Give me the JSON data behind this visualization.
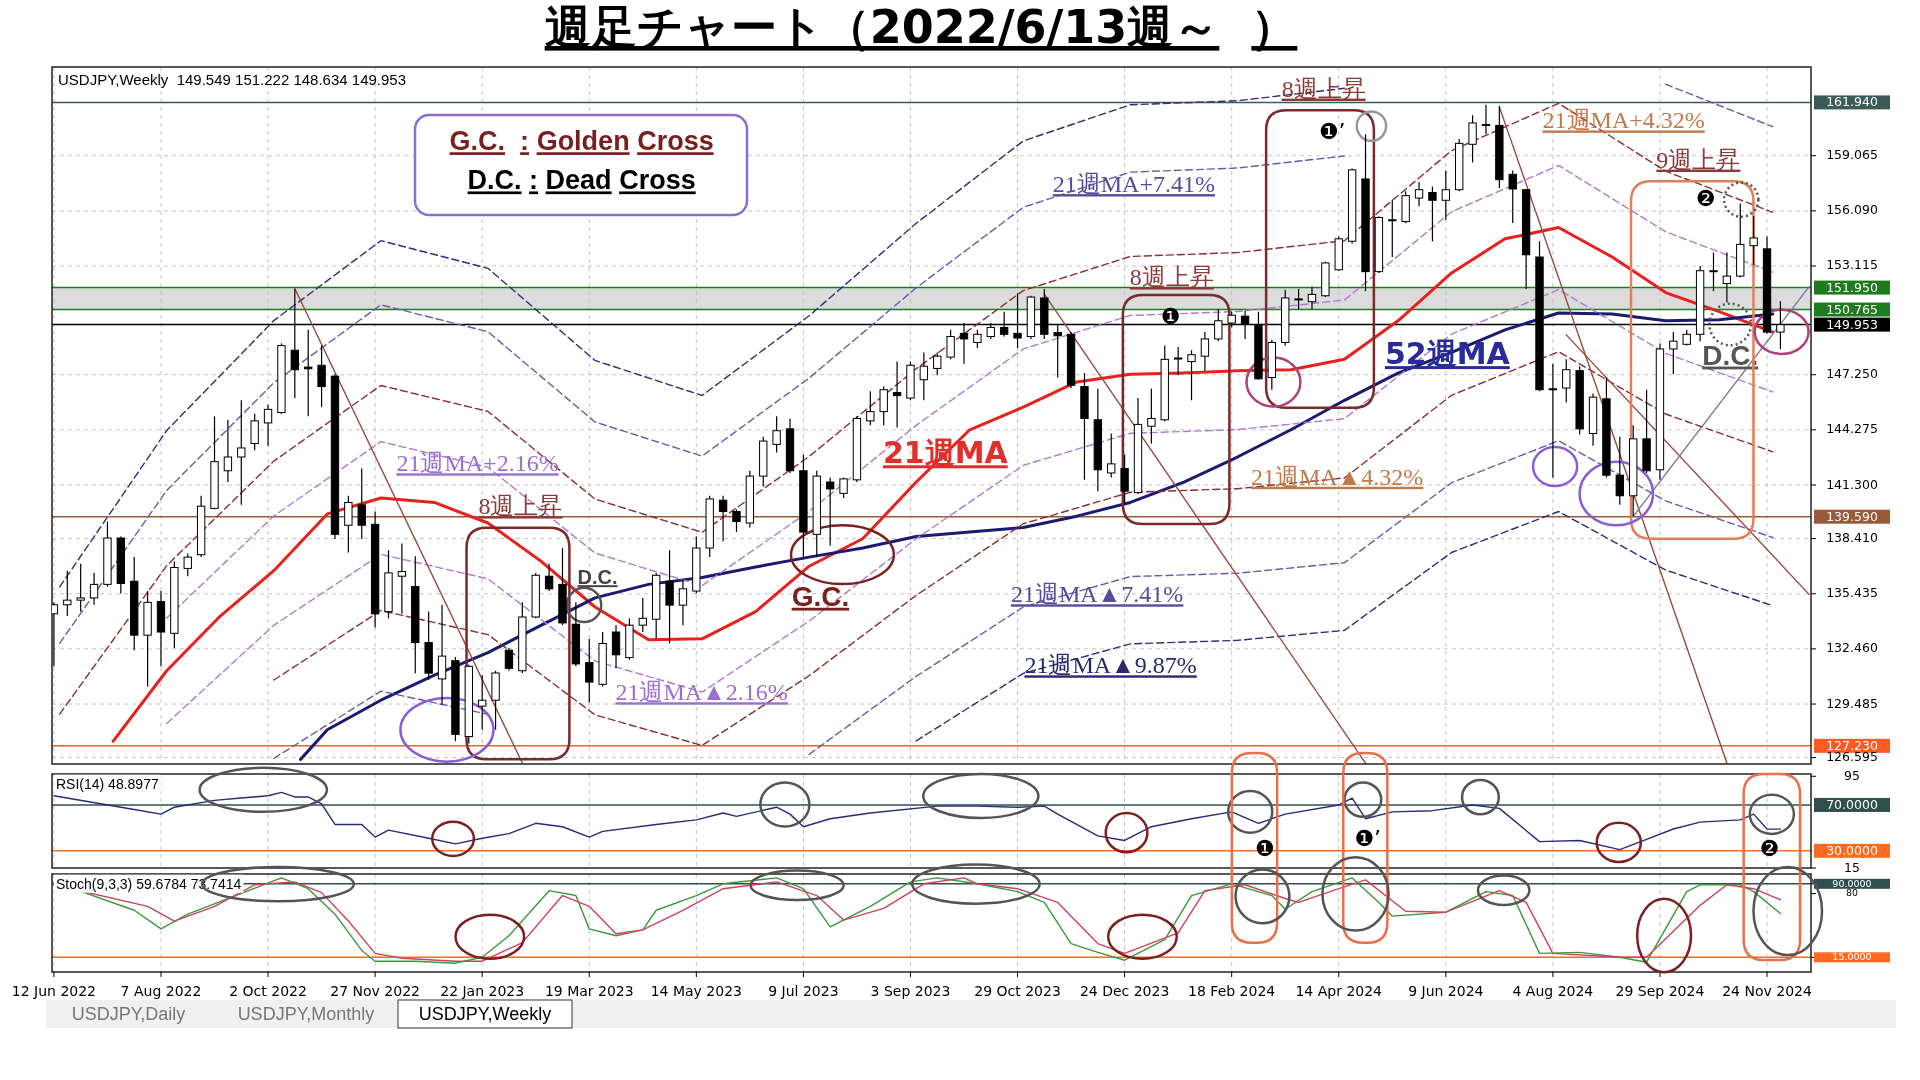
{
  "chart_data": [
    {
      "type": "candlestick",
      "title": "週足チャート（2022/6/13週～  ）",
      "subtitle": "USDJPY,Weekly  149.549 151.222 148.634 149.953",
      "x": [
        "2022-06-12",
        "2022-06-19",
        "2022-06-26",
        "2022-07-03",
        "2022-07-10",
        "2022-07-17",
        "2022-07-24",
        "2022-07-31",
        "2022-08-07",
        "2022-08-14",
        "2022-08-21",
        "2022-08-28",
        "2022-09-04",
        "2022-09-11",
        "2022-09-18",
        "2022-09-25",
        "2022-10-02",
        "2022-10-09",
        "2022-10-16",
        "2022-10-23",
        "2022-10-30",
        "2022-11-06",
        "2022-11-13",
        "2022-11-20",
        "2022-11-27",
        "2022-12-04",
        "2022-12-11",
        "2022-12-18",
        "2022-12-25",
        "2023-01-01",
        "2023-01-08",
        "2023-01-15",
        "2023-01-22",
        "2023-01-29",
        "2023-02-05",
        "2023-02-12",
        "2023-02-19",
        "2023-02-26",
        "2023-03-05",
        "2023-03-12",
        "2023-03-19",
        "2023-03-26",
        "2023-04-02",
        "2023-04-09",
        "2023-04-16",
        "2023-04-23",
        "2023-04-30",
        "2023-05-07",
        "2023-05-14",
        "2023-05-21",
        "2023-05-28",
        "2023-06-04",
        "2023-06-11",
        "2023-06-18",
        "2023-06-25",
        "2023-07-02",
        "2023-07-09",
        "2023-07-16",
        "2023-07-23",
        "2023-07-30",
        "2023-08-06",
        "2023-08-13",
        "2023-08-20",
        "2023-08-27",
        "2023-09-03",
        "2023-09-10",
        "2023-09-17",
        "2023-09-24",
        "2023-10-01",
        "2023-10-08",
        "2023-10-15",
        "2023-10-22",
        "2023-10-29",
        "2023-11-05",
        "2023-11-12",
        "2023-11-19",
        "2023-11-26",
        "2023-12-03",
        "2023-12-10",
        "2023-12-17",
        "2023-12-24",
        "2023-12-31",
        "2024-01-07",
        "2024-01-14",
        "2024-01-21",
        "2024-01-28",
        "2024-02-04",
        "2024-02-11",
        "2024-02-18",
        "2024-02-25",
        "2024-03-03",
        "2024-03-10",
        "2024-03-17",
        "2024-03-24",
        "2024-03-31",
        "2024-04-07",
        "2024-04-14",
        "2024-04-21",
        "2024-04-28",
        "2024-05-05",
        "2024-05-12",
        "2024-05-19",
        "2024-05-26",
        "2024-06-02",
        "2024-06-09",
        "2024-06-16",
        "2024-06-23",
        "2024-06-30",
        "2024-07-07",
        "2024-07-14",
        "2024-07-21",
        "2024-07-28",
        "2024-08-04",
        "2024-08-11",
        "2024-08-18",
        "2024-08-25",
        "2024-09-01",
        "2024-09-08",
        "2024-09-15",
        "2024-09-22",
        "2024-09-29",
        "2024-10-06",
        "2024-10-13",
        "2024-10-20",
        "2024-10-27",
        "2024-11-03",
        "2024-11-10",
        "2024-11-17",
        "2024-11-24",
        "2024-12-01"
      ],
      "ohlc": [
        [
          134.35,
          134.97,
          131.52,
          134.84
        ],
        [
          134.84,
          136.68,
          134.23,
          135.09
        ],
        [
          135.09,
          137.05,
          134.47,
          135.21
        ],
        [
          135.21,
          136.56,
          134.84,
          135.94
        ],
        [
          135.94,
          139.33,
          135.82,
          138.44
        ],
        [
          138.44,
          138.52,
          135.45,
          135.99
        ],
        [
          136.11,
          137.41,
          132.39,
          133.2
        ],
        [
          133.2,
          135.58,
          130.43,
          134.97
        ],
        [
          135.01,
          135.58,
          131.52,
          133.37
        ],
        [
          133.3,
          137.17,
          132.51,
          136.85
        ],
        [
          136.8,
          137.61,
          136.38,
          137.41
        ],
        [
          137.54,
          140.72,
          137.41,
          140.16
        ],
        [
          140.04,
          145.01,
          139.99,
          142.56
        ],
        [
          142.07,
          144.82,
          141.46,
          142.81
        ],
        [
          142.81,
          145.87,
          140.23,
          143.3
        ],
        [
          143.54,
          145.14,
          143.17,
          144.76
        ],
        [
          144.65,
          145.63,
          143.42,
          145.38
        ],
        [
          145.21,
          148.94,
          145.14,
          148.82
        ],
        [
          148.57,
          151.88,
          145.99,
          147.52
        ],
        [
          147.66,
          149.67,
          145.01,
          147.57
        ],
        [
          147.76,
          148.82,
          145.5,
          146.61
        ],
        [
          147.17,
          147.27,
          138.39,
          138.64
        ],
        [
          139.13,
          140.72,
          137.66,
          140.36
        ],
        [
          140.23,
          142.19,
          138.39,
          139.13
        ],
        [
          139.18,
          139.87,
          133.61,
          134.35
        ],
        [
          134.47,
          137.78,
          134.11,
          136.56
        ],
        [
          136.38,
          138.15,
          134.35,
          136.63
        ],
        [
          135.82,
          137.46,
          131.15,
          132.8
        ],
        [
          132.8,
          134.47,
          130.79,
          131.15
        ],
        [
          130.84,
          134.84,
          129.44,
          132.07
        ],
        [
          131.82,
          132.02,
          127.48,
          127.85
        ],
        [
          127.73,
          131.6,
          127.36,
          131.52
        ],
        [
          129.37,
          131.04,
          128.1,
          129.69
        ],
        [
          129.69,
          131.28,
          128.1,
          131.16
        ],
        [
          132.39,
          132.51,
          131.28,
          131.41
        ],
        [
          131.28,
          134.97,
          131.16,
          134.18
        ],
        [
          134.18,
          136.56,
          134.11,
          136.43
        ],
        [
          136.38,
          137.05,
          135.58,
          135.7
        ],
        [
          135.94,
          137.9,
          133.74,
          133.86
        ],
        [
          133.79,
          134.97,
          131.52,
          131.65
        ],
        [
          131.72,
          132.99,
          129.57,
          130.67
        ],
        [
          130.55,
          133.37,
          130.43,
          132.75
        ],
        [
          133.37,
          133.74,
          131.41,
          132.14
        ],
        [
          131.99,
          134.11,
          131.87,
          133.74
        ],
        [
          133.74,
          135.21,
          133.37,
          134.11
        ],
        [
          134.06,
          136.56,
          132.99,
          136.43
        ],
        [
          136.11,
          137.78,
          132.75,
          134.82
        ],
        [
          134.82,
          136.23,
          133.74,
          135.7
        ],
        [
          135.58,
          138.52,
          135.45,
          137.9
        ],
        [
          137.9,
          140.72,
          137.41,
          140.55
        ],
        [
          140.48,
          140.72,
          138.27,
          139.87
        ],
        [
          139.87,
          139.99,
          138.76,
          139.33
        ],
        [
          139.25,
          142.07,
          139.01,
          141.78
        ],
        [
          141.78,
          143.91,
          141.21,
          143.67
        ],
        [
          143.49,
          145.01,
          143.05,
          144.23
        ],
        [
          144.33,
          144.88,
          141.95,
          142.07
        ],
        [
          142.07,
          142.93,
          137.29,
          138.76
        ],
        [
          138.64,
          142.07,
          137.41,
          141.78
        ],
        [
          141.46,
          141.7,
          138.03,
          141.09
        ],
        [
          140.85,
          141.7,
          140.6,
          141.63
        ],
        [
          141.58,
          145.01,
          141.46,
          144.89
        ],
        [
          144.76,
          146.36,
          144.52,
          145.26
        ],
        [
          145.26,
          146.61,
          144.52,
          146.44
        ],
        [
          146.29,
          147.96,
          144.4,
          146.12
        ],
        [
          145.99,
          147.96,
          145.87,
          147.76
        ],
        [
          146.98,
          148.45,
          145.87,
          147.71
        ],
        [
          147.59,
          148.45,
          147.22,
          148.25
        ],
        [
          148.2,
          149.67,
          148.08,
          149.31
        ],
        [
          149.48,
          150.04,
          147.84,
          149.18
        ],
        [
          148.99,
          149.67,
          148.69,
          149.43
        ],
        [
          149.31,
          150.04,
          149.18,
          149.8
        ],
        [
          149.8,
          150.65,
          149.31,
          149.43
        ],
        [
          149.48,
          151.63,
          148.69,
          149.23
        ],
        [
          149.31,
          151.51,
          149.18,
          151.44
        ],
        [
          151.39,
          151.88,
          149.18,
          149.43
        ],
        [
          149.53,
          149.92,
          147.1,
          149.35
        ],
        [
          149.43,
          149.55,
          146.53,
          146.68
        ],
        [
          146.61,
          147.34,
          141.58,
          144.89
        ],
        [
          144.82,
          146.49,
          140.97,
          142.12
        ],
        [
          141.95,
          144.08,
          141.7,
          142.44
        ],
        [
          142.19,
          142.93,
          140.23,
          140.97
        ],
        [
          140.89,
          145.99,
          140.8,
          144.57
        ],
        [
          144.47,
          146.49,
          143.54,
          144.89
        ],
        [
          144.82,
          148.82,
          144.72,
          148.08
        ],
        [
          148.1,
          148.74,
          147.22,
          148.15
        ],
        [
          147.96,
          148.57,
          145.87,
          148.33
        ],
        [
          148.25,
          149.55,
          147.47,
          149.18
        ],
        [
          149.18,
          150.78,
          149.06,
          150.16
        ],
        [
          150.04,
          150.65,
          149.8,
          150.46
        ],
        [
          150.41,
          150.7,
          149.18,
          149.97
        ],
        [
          149.92,
          150.65,
          146.98,
          147.03
        ],
        [
          147.1,
          149.14,
          146.44,
          148.99
        ],
        [
          148.99,
          151.83,
          148.82,
          151.39
        ],
        [
          151.29,
          151.88,
          150.78,
          151.34
        ],
        [
          151.19,
          152.0,
          150.78,
          151.58
        ],
        [
          151.51,
          153.35,
          151.44,
          153.28
        ],
        [
          152.91,
          154.7,
          152.86,
          154.58
        ],
        [
          154.45,
          158.38,
          154.33,
          158.3
        ],
        [
          157.81,
          160.22,
          151.76,
          152.81
        ],
        [
          152.81,
          155.8,
          152.74,
          155.73
        ],
        [
          155.56,
          156.66,
          153.6,
          155.61
        ],
        [
          155.51,
          157.15,
          155.44,
          156.91
        ],
        [
          156.78,
          157.64,
          156.34,
          157.23
        ],
        [
          157.08,
          157.4,
          154.45,
          156.66
        ],
        [
          156.66,
          158.26,
          155.61,
          157.23
        ],
        [
          157.23,
          159.97,
          157.15,
          159.73
        ],
        [
          159.68,
          161.25,
          158.7,
          160.83
        ],
        [
          160.7,
          161.81,
          160.22,
          160.75
        ],
        [
          160.7,
          161.74,
          157.32,
          157.77
        ],
        [
          158.06,
          158.26,
          155.44,
          157.27
        ],
        [
          157.23,
          157.27,
          151.88,
          153.72
        ],
        [
          153.6,
          154.45,
          146.36,
          146.44
        ],
        [
          146.49,
          147.84,
          141.7,
          146.44
        ],
        [
          146.53,
          148.08,
          145.75,
          147.52
        ],
        [
          147.47,
          147.71,
          144.03,
          144.33
        ],
        [
          144.08,
          146.24,
          143.42,
          146.04
        ],
        [
          145.95,
          147.1,
          141.7,
          141.83
        ],
        [
          141.83,
          143.91,
          140.23,
          140.72
        ],
        [
          140.72,
          144.52,
          139.62,
          143.79
        ],
        [
          143.79,
          146.44,
          141.95,
          142.07
        ],
        [
          142.12,
          148.94,
          141.58,
          148.64
        ],
        [
          148.64,
          149.55,
          147.27,
          149.06
        ],
        [
          148.89,
          149.67,
          148.82,
          149.43
        ],
        [
          149.43,
          153.11,
          149.06,
          152.86
        ],
        [
          152.81,
          153.84,
          151.76,
          152.86
        ],
        [
          152.17,
          153.84,
          151.14,
          152.57
        ],
        [
          152.57,
          156.49,
          152.49,
          154.28
        ],
        [
          154.21,
          155.8,
          153.16,
          154.63
        ],
        [
          154.04,
          154.7,
          149.48,
          149.55
        ],
        [
          149.55,
          151.22,
          148.63,
          149.95
        ]
      ],
      "xlim": [
        "2022-06-11",
        "2024-12-17"
      ],
      "xticks": [
        "2022-06-12",
        "2022-08-07",
        "2022-10-02",
        "2022-11-27",
        "2023-01-22",
        "2023-03-19",
        "2023-05-14",
        "2023-07-09",
        "2023-09-03",
        "2023-10-29",
        "2023-12-24",
        "2024-02-18",
        "2024-04-14",
        "2024-06-09",
        "2024-08-04",
        "2024-09-29",
        "2024-11-24"
      ],
      "tick_labels": "y",
      "ylim": [
        126.25,
        163.85
      ],
      "yticks": [
        159.065,
        {
          "value": 156.09,
          "label": "156.090"
        },
        153.115,
        {
          "value": 147.25,
          "label": "147.250"
        },
        144.275,
        {
          "value": 141.3,
          "label": "141.300"
        },
        {
          "value": 138.41,
          "label": "138.410"
        },
        135.435,
        {
          "value": 132.46,
          "label": "132.460"
        },
        129.485,
        126.595
      ],
      "grid": true,
      "bands": [
        {
          "axis": "y",
          "from": 150.765,
          "to": 151.95,
          "color": "#dcdcdc"
        }
      ],
      "ref_lines": [
        {
          "axis": "y",
          "value": 161.94,
          "label": "161.940",
          "color": "#3b5a58"
        },
        {
          "axis": "y",
          "value": 151.95,
          "label": "151.950",
          "color": "#1e7b1e"
        },
        {
          "axis": "y",
          "value": 150.765,
          "label": "150.765",
          "color": "#1e7b1e"
        },
        {
          "axis": "y",
          "value": 149.953,
          "label": "149.953",
          "color": "#000000"
        },
        {
          "axis": "y",
          "value": 139.59,
          "label": "139.590",
          "color": "#9a5a3a"
        },
        {
          "axis": "y",
          "value": 127.23,
          "label": "127.230",
          "color": "#ff5a1f"
        }
      ],
      "series": [
        {
          "type": "line",
          "color": "#e8211c",
          "line_style": "solid",
          "x": [
            "2022-07-13",
            "2022-08-10",
            "2022-09-07",
            "2022-10-05",
            "2022-11-02",
            "2022-11-30",
            "2022-12-28",
            "2023-01-25",
            "2023-02-22",
            "2023-03-22",
            "2023-04-19",
            "2023-05-17",
            "2023-06-14",
            "2023-07-12",
            "2023-08-09",
            "2023-09-06",
            "2023-10-04",
            "2023-11-01",
            "2023-11-29",
            "2023-12-27",
            "2024-01-24",
            "2024-02-21",
            "2024-03-20",
            "2024-04-17",
            "2024-05-15",
            "2024-06-12",
            "2024-07-10",
            "2024-08-07",
            "2024-09-04",
            "2024-10-02",
            "2024-10-30",
            "2024-11-27"
          ],
          "values": [
            127.48,
            131.28,
            134.23,
            136.68,
            139.74,
            140.6,
            140.36,
            139.25,
            137.17,
            134.72,
            132.95,
            133.0,
            134.47,
            136.92,
            138.4,
            141.46,
            144.28,
            145.5,
            146.86,
            147.27,
            147.34,
            147.47,
            147.52,
            148.08,
            150.16,
            152.74,
            154.58,
            155.19,
            153.6,
            151.68,
            150.65,
            149.55
          ]
        },
        {
          "type": "line",
          "color": "#1a1a6e",
          "line_style": "solid",
          "x": [
            "2022-10-19",
            "2022-11-02",
            "2022-11-30",
            "2022-12-28",
            "2023-01-25",
            "2023-02-22",
            "2023-03-22",
            "2023-04-19",
            "2023-05-17",
            "2023-06-14",
            "2023-07-12",
            "2023-08-09",
            "2023-09-06",
            "2023-10-04",
            "2023-11-01",
            "2023-11-29",
            "2023-12-27",
            "2024-01-24",
            "2024-02-21",
            "2024-03-20",
            "2024-04-17",
            "2024-05-15",
            "2024-06-12",
            "2024-07-10",
            "2024-08-07",
            "2024-09-04",
            "2024-10-02",
            "2024-10-30",
            "2024-11-27"
          ],
          "values": [
            126.5,
            128.1,
            129.69,
            131.04,
            132.26,
            133.74,
            135.21,
            135.94,
            136.31,
            136.88,
            137.41,
            137.9,
            138.52,
            138.76,
            139.01,
            139.62,
            140.36,
            141.46,
            142.81,
            144.28,
            145.87,
            147.34,
            148.45,
            149.67,
            150.58,
            150.53,
            150.16,
            150.21,
            150.53
          ]
        },
        {
          "type": "line",
          "color": "#b07ad0",
          "line_style": "dashed",
          "x": [
            "2022-08-10",
            "2022-10-05",
            "2022-11-30",
            "2023-01-25",
            "2023-03-22",
            "2023-05-17",
            "2023-07-12",
            "2023-09-06",
            "2023-11-01",
            "2023-12-27",
            "2024-02-21",
            "2024-04-17",
            "2024-06-12",
            "2024-08-07",
            "2024-10-02",
            "2024-11-27"
          ],
          "values": [
            134.12,
            139.63,
            143.64,
            142.26,
            137.63,
            135.87,
            139.88,
            144.52,
            148.64,
            150.45,
            150.66,
            151.28,
            156.04,
            158.54,
            154.96,
            152.78
          ]
        },
        {
          "type": "line",
          "color": "#b07ad0",
          "line_style": "dashed",
          "x": [
            "2022-08-10",
            "2022-10-05",
            "2022-11-30",
            "2023-01-25",
            "2023-03-22",
            "2023-05-17",
            "2023-07-12",
            "2023-09-06",
            "2023-11-01",
            "2023-12-27",
            "2024-02-21",
            "2024-04-17",
            "2024-06-12",
            "2024-08-07",
            "2024-10-02",
            "2024-11-27"
          ],
          "values": [
            128.44,
            133.73,
            137.56,
            136.24,
            131.81,
            130.13,
            133.96,
            138.4,
            142.36,
            144.09,
            144.29,
            144.88,
            149.44,
            151.84,
            148.4,
            146.32
          ]
        },
        {
          "type": "line",
          "color": "#8b2e2e",
          "line_style": "dashed",
          "x": [
            "2022-06-15",
            "2022-08-10",
            "2022-10-05",
            "2022-11-30",
            "2023-01-25",
            "2023-03-22",
            "2023-05-17",
            "2023-07-12",
            "2023-09-06",
            "2023-11-01",
            "2023-12-27",
            "2024-02-21",
            "2024-04-17",
            "2024-06-12",
            "2024-08-07",
            "2024-10-02",
            "2024-11-27"
          ],
          "values": [
            128.94,
            136.95,
            142.59,
            146.67,
            145.27,
            140.54,
            138.75,
            142.84,
            147.57,
            151.79,
            153.63,
            153.84,
            154.48,
            159.34,
            161.89,
            158.23,
            156.01
          ]
        },
        {
          "type": "line",
          "color": "#8b2e2e",
          "line_style": "dashed",
          "x": [
            "2022-10-05",
            "2022-11-30",
            "2023-01-25",
            "2023-03-22",
            "2023-05-17",
            "2023-07-12",
            "2023-09-06",
            "2023-11-01",
            "2023-12-27",
            "2024-02-21",
            "2024-04-17",
            "2024-06-12",
            "2024-08-07",
            "2024-10-02",
            "2024-11-27"
          ],
          "values": [
            130.78,
            134.53,
            133.23,
            128.9,
            127.25,
            131.01,
            135.35,
            139.21,
            140.91,
            141.1,
            141.68,
            146.14,
            148.49,
            145.13,
            143.09
          ]
        },
        {
          "type": "line",
          "color": "#6a5aa8",
          "line_style": "dashed",
          "x": [
            "2022-06-15",
            "2022-08-10",
            "2022-10-05",
            "2022-11-30",
            "2023-01-25",
            "2023-03-22",
            "2023-05-17",
            "2023-07-12",
            "2023-09-06",
            "2023-11-01",
            "2023-12-27",
            "2024-02-21",
            "2024-04-17"
          ],
          "values": [
            132.76,
            141.01,
            146.81,
            151.02,
            149.57,
            144.7,
            142.86,
            147.07,
            151.94,
            156.28,
            158.18,
            158.4,
            159.05
          ]
        },
        {
          "type": "line",
          "color": "#6a5aa8",
          "line_style": "dashed",
          "x": [
            "2024-10-02",
            "2024-11-27"
          ],
          "values": [
            162.92,
            160.63
          ]
        },
        {
          "type": "line",
          "color": "#6a5aa8",
          "line_style": "dashed",
          "x": [
            "2022-10-05",
            "2022-11-30",
            "2023-01-25"
          ],
          "values": [
            126.55,
            130.18,
            128.93
          ]
        },
        {
          "type": "line",
          "color": "#6a5aa8",
          "line_style": "dashed",
          "x": [
            "2023-07-12",
            "2023-09-06",
            "2023-11-01",
            "2023-12-27",
            "2024-02-21",
            "2024-04-17",
            "2024-06-12",
            "2024-08-07",
            "2024-10-02",
            "2024-11-27"
          ],
          "values": [
            126.77,
            130.98,
            134.72,
            136.36,
            136.54,
            137.11,
            141.42,
            143.69,
            140.44,
            138.47
          ]
        },
        {
          "type": "line",
          "color": "#2e2e7a",
          "line_style": "dashed",
          "x": [
            "2022-06-15",
            "2022-08-10",
            "2022-10-05",
            "2022-11-30",
            "2023-01-25",
            "2023-03-22",
            "2023-05-17",
            "2023-07-12",
            "2023-09-06",
            "2023-11-01",
            "2023-12-27",
            "2024-02-21",
            "2024-04-17"
          ],
          "values": [
            135.8,
            144.24,
            150.17,
            154.48,
            152.99,
            148.02,
            146.13,
            150.43,
            155.42,
            159.86,
            161.81,
            162.03,
            162.7
          ]
        },
        {
          "type": "line",
          "color": "#2e2e7a",
          "line_style": "dashed",
          "x": [
            "2023-09-06",
            "2023-11-01",
            "2023-12-27",
            "2024-02-21",
            "2024-04-17",
            "2024-06-12",
            "2024-08-07",
            "2024-10-02",
            "2024-11-27"
          ],
          "values": [
            127.5,
            131.14,
            132.73,
            132.92,
            133.46,
            137.66,
            139.87,
            136.71,
            134.79
          ]
        },
        {
          "type": "line",
          "color": "#9a4a3a",
          "line_style": "solid",
          "x": [
            "2022-10-16",
            "2023-02-12"
          ],
          "values": [
            151.9,
            126.3
          ]
        },
        {
          "type": "line",
          "color": "#9a4a3a",
          "line_style": "solid",
          "x": [
            "2023-11-12",
            "2024-04-28"
          ],
          "values": [
            151.6,
            126.3
          ]
        },
        {
          "type": "line",
          "color": "#9a4a3a",
          "line_style": "solid",
          "x": [
            "2024-07-07",
            "2024-11-03"
          ],
          "values": [
            161.7,
            126.3
          ]
        },
        {
          "type": "line",
          "color": "#9a4a3a",
          "line_style": "solid",
          "x": [
            "2024-08-11",
            "2024-12-16"
          ],
          "values": [
            149.4,
            135.4
          ]
        },
        {
          "type": "line",
          "color": "#7a7aa0",
          "line_style": "solid",
          "x": [
            "2024-09-15",
            "2024-12-16"
          ],
          "values": [
            139.6,
            152.0
          ]
        }
      ],
      "annotations": [
        "G.C.  : Golden Cross",
        "D.C. : Dead Cross",
        "21週MA+2.16%",
        "8週上昇",
        "D.C.",
        "21週MA▲2.16%",
        "G.C.",
        "21週MA",
        "21週MA+7.41%",
        "8週上昇",
        "❶",
        "21週MA▲7.41%",
        "21週MA▲9.87%",
        "21週MA▲4.32%",
        "52週MA",
        "8週上昇",
        "❶’",
        "21週MA+4.32%",
        "9週上昇",
        "❷",
        "D.C."
      ]
    },
    {
      "type": "line",
      "title": "RSI(14) 48.8977",
      "xlim": [
        "2022-06-11",
        "2024-12-17"
      ],
      "xticks": [
        "2022-06-12",
        "2022-08-07",
        "2022-10-02",
        "2022-11-27",
        "2023-01-22",
        "2023-03-19",
        "2023-05-14",
        "2023-07-09",
        "2023-09-03",
        "2023-10-29",
        "2023-12-24",
        "2024-02-18",
        "2024-04-14",
        "2024-06-09",
        "2024-08-04",
        "2024-09-29",
        "2024-11-24"
      ],
      "tick_labels": "y",
      "ylim": [
        15,
        97
      ],
      "yticks": [
        15,
        95
      ],
      "grid": "x",
      "ref_lines": [
        {
          "axis": "y",
          "value": 70,
          "label": "70.0000",
          "color": "#2f4f4f"
        },
        {
          "axis": "y",
          "value": 30,
          "label": "30.0000",
          "color": "#ff6a21"
        }
      ],
      "series": [
        {
          "color": "#2a2a7a",
          "line_style": "solid",
          "x": [
            "2022-06-12",
            "2022-07-24",
            "2022-08-07",
            "2022-08-14",
            "2022-09-04",
            "2022-09-18",
            "2022-10-02",
            "2022-10-09",
            "2022-10-16",
            "2022-10-23",
            "2022-10-30",
            "2022-11-06",
            "2022-11-20",
            "2022-11-27",
            "2022-12-04",
            "2022-12-25",
            "2023-01-08",
            "2023-01-22",
            "2023-02-05",
            "2023-02-19",
            "2023-03-05",
            "2023-03-19",
            "2023-03-26",
            "2023-04-23",
            "2023-05-14",
            "2023-05-28",
            "2023-06-04",
            "2023-06-25",
            "2023-07-02",
            "2023-07-09",
            "2023-07-23",
            "2023-08-13",
            "2023-09-17",
            "2023-10-08",
            "2023-10-29",
            "2023-11-12",
            "2023-11-19",
            "2023-12-10",
            "2023-12-24",
            "2024-01-07",
            "2024-01-28",
            "2024-02-18",
            "2024-03-03",
            "2024-03-17",
            "2024-04-14",
            "2024-04-21",
            "2024-04-28",
            "2024-05-12",
            "2024-06-02",
            "2024-06-23",
            "2024-07-07",
            "2024-07-28",
            "2024-08-18",
            "2024-09-08",
            "2024-09-22",
            "2024-10-06",
            "2024-10-20",
            "2024-11-10",
            "2024-11-17",
            "2024-11-24",
            "2024-12-01"
          ],
          "values": [
            78,
            66,
            62,
            68,
            74,
            76,
            78,
            81,
            77,
            77,
            71,
            53,
            53,
            42,
            48,
            41,
            36,
            41,
            45,
            54,
            51,
            42,
            47,
            53,
            57,
            63,
            60,
            68,
            62,
            51,
            58,
            63,
            69,
            69,
            68,
            69,
            62,
            43,
            39,
            51,
            58,
            64,
            54,
            62,
            70,
            76,
            58,
            64,
            65,
            70,
            67,
            38,
            39,
            31,
            40,
            49,
            55,
            57,
            62,
            49,
            48.9
          ]
        }
      ],
      "annotations": [
        "❶",
        "❶’",
        "❷"
      ]
    },
    {
      "type": "line",
      "title": "Stoch(9,3,3) 59.6784 73.7414",
      "xlim": [
        "2022-06-11",
        "2024-12-17"
      ],
      "xticks": [
        {
          "value": "2022-06-12",
          "label": "12 Jun 2022"
        },
        {
          "value": "2022-08-07",
          "label": "7 Aug 2022"
        },
        {
          "value": "2022-10-02",
          "label": "2 Oct 2022"
        },
        {
          "value": "2022-11-27",
          "label": "27 Nov 2022"
        },
        {
          "value": "2023-01-22",
          "label": "22 Jan 2023"
        },
        {
          "value": "2023-03-19",
          "label": "19 Mar 2023"
        },
        {
          "value": "2023-05-14",
          "label": "14 May 2023"
        },
        {
          "value": "2023-07-09",
          "label": "9 Jul 2023"
        },
        {
          "value": "2023-09-03",
          "label": "3 Sep 2023"
        },
        {
          "value": "2023-10-29",
          "label": "29 Oct 2023"
        },
        {
          "value": "2023-12-24",
          "label": "24 Dec 2023"
        },
        {
          "value": "2024-02-18",
          "label": "18 Feb 2024"
        },
        {
          "value": "2024-04-14",
          "label": "14 Apr 2024"
        },
        {
          "value": "2024-06-09",
          "label": "9 Jun 2024"
        },
        {
          "value": "2024-08-04",
          "label": "4 Aug 2024"
        },
        {
          "value": "2024-09-29",
          "label": "29 Sep 2024"
        },
        {
          "value": "2024-11-24",
          "label": "24 Nov 2024"
        }
      ],
      "ylim": [
        0,
        100
      ],
      "yticks": [
        {
          "value": 15,
          "label": "15.0000"
        },
        80,
        {
          "value": 90,
          "label": "90.0000"
        }
      ],
      "grid": "x",
      "ref_lines": [
        {
          "axis": "y",
          "value": 90,
          "color": "#2f4f4f"
        },
        {
          "axis": "y",
          "value": 15,
          "color": "#ff6a21"
        }
      ],
      "series": [
        {
          "color": "#3a9a3a",
          "line_style": "solid",
          "x": [
            "2022-06-12",
            "2022-07-24",
            "2022-08-07",
            "2022-08-21",
            "2022-10-09",
            "2022-10-23",
            "2022-11-06",
            "2022-11-20",
            "2022-11-27",
            "2022-12-18",
            "2023-01-08",
            "2023-01-22",
            "2023-02-05",
            "2023-02-26",
            "2023-03-12",
            "2023-03-19",
            "2023-04-02",
            "2023-04-16",
            "2023-04-23",
            "2023-05-14",
            "2023-05-28",
            "2023-06-25",
            "2023-07-09",
            "2023-07-23",
            "2023-08-13",
            "2023-09-03",
            "2023-09-17",
            "2023-10-08",
            "2023-10-29",
            "2023-11-12",
            "2023-11-26",
            "2023-12-10",
            "2023-12-24",
            "2024-01-14",
            "2024-01-28",
            "2024-02-18",
            "2024-03-10",
            "2024-03-17",
            "2024-03-31",
            "2024-04-21",
            "2024-05-05",
            "2024-05-12",
            "2024-06-09",
            "2024-06-30",
            "2024-07-14",
            "2024-07-28",
            "2024-08-18",
            "2024-09-08",
            "2024-09-22",
            "2024-10-13",
            "2024-10-20",
            "2024-11-10",
            "2024-11-17",
            "2024-12-01"
          ],
          "values": [
            92,
            63,
            44,
            59,
            96,
            85,
            59,
            22,
            11,
            11,
            9,
            15,
            37,
            83,
            78,
            44,
            37,
            43,
            63,
            78,
            90,
            96,
            85,
            46,
            67,
            92,
            96,
            90,
            82,
            71,
            29,
            20,
            12,
            33,
            78,
            90,
            78,
            64,
            82,
            96,
            71,
            57,
            61,
            82,
            78,
            19,
            20,
            15,
            10,
            82,
            89,
            89,
            82,
            59.7
          ]
        },
        {
          "color": "#d04060",
          "line_style": "solid",
          "x": [
            "2022-06-12",
            "2022-07-31",
            "2022-08-14",
            "2022-09-04",
            "2022-09-25",
            "2022-10-16",
            "2022-10-30",
            "2022-11-13",
            "2022-11-27",
            "2022-12-11",
            "2023-01-08",
            "2023-01-22",
            "2023-02-12",
            "2023-03-05",
            "2023-03-19",
            "2023-04-02",
            "2023-04-16",
            "2023-05-07",
            "2023-05-28",
            "2023-06-25",
            "2023-07-16",
            "2023-07-30",
            "2023-08-20",
            "2023-09-10",
            "2023-10-01",
            "2023-10-08",
            "2023-10-29",
            "2023-11-19",
            "2023-12-10",
            "2023-12-24",
            "2024-01-21",
            "2024-02-04",
            "2024-02-25",
            "2024-03-17",
            "2024-03-24",
            "2024-04-14",
            "2024-04-28",
            "2024-05-19",
            "2024-06-09",
            "2024-07-07",
            "2024-07-21",
            "2024-08-04",
            "2024-09-08",
            "2024-09-22",
            "2024-10-20",
            "2024-11-03",
            "2024-11-17",
            "2024-12-01"
          ],
          "values": [
            89,
            67,
            52,
            67,
            89,
            92,
            81,
            52,
            19,
            14,
            11,
            11,
            30,
            78,
            67,
            39,
            43,
            63,
            85,
            92,
            78,
            53,
            65,
            90,
            96,
            90,
            85,
            71,
            29,
            19,
            40,
            83,
            89,
            75,
            71,
            85,
            94,
            62,
            61,
            83,
            71,
            19,
            15,
            15,
            68,
            89,
            85,
            73.7
          ]
        }
      ],
      "annotations": [
        "USDJPY,Daily",
        "USDJPY,Monthly",
        "USDJPY,Weekly"
      ]
    }
  ]
}
